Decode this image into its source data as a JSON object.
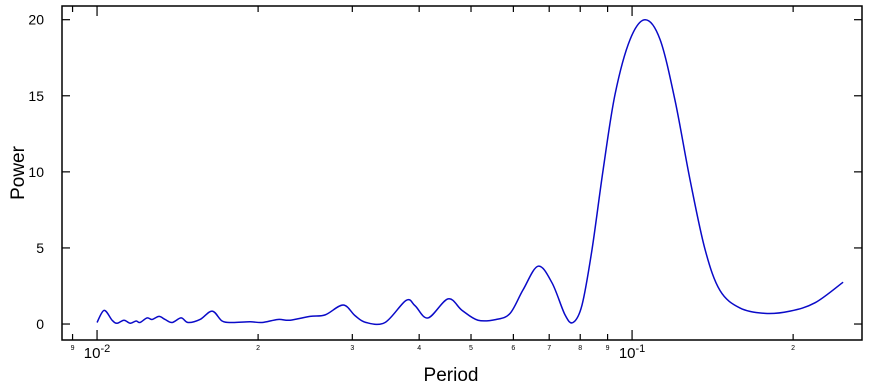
{
  "chart_data": {
    "type": "line",
    "x_label": "Period",
    "y_label": "Power",
    "xscale": "log",
    "xlim": [
      0.0086,
      0.269
    ],
    "ylim": [
      -1.05,
      20.9
    ],
    "xticks": [
      {
        "value": 0.009,
        "label": "9"
      },
      {
        "value": 0.01,
        "label": "10",
        "exponent": "-2"
      },
      {
        "value": 0.02,
        "label": "2"
      },
      {
        "value": 0.03,
        "label": "3"
      },
      {
        "value": 0.04,
        "label": "4"
      },
      {
        "value": 0.05,
        "label": "5"
      },
      {
        "value": 0.06,
        "label": "6"
      },
      {
        "value": 0.07,
        "label": "7"
      },
      {
        "value": 0.08,
        "label": "8"
      },
      {
        "value": 0.09,
        "label": "9"
      },
      {
        "value": 0.1,
        "label": "10",
        "exponent": "-1"
      },
      {
        "value": 0.2,
        "label": "2"
      }
    ],
    "yticks": [
      0,
      5,
      10,
      15,
      20
    ],
    "series": [
      {
        "color": "#0a0ac8",
        "x": [
          0.01,
          0.01031,
          0.01067,
          0.0109,
          0.01123,
          0.01153,
          0.01183,
          0.01203,
          0.0124,
          0.01267,
          0.01306,
          0.0134,
          0.01381,
          0.01436,
          0.01479,
          0.01558,
          0.01641,
          0.01713,
          0.01788,
          0.01932,
          0.02034,
          0.02179,
          0.02295,
          0.02501,
          0.02669,
          0.02884,
          0.03035,
          0.03182,
          0.03454,
          0.03781,
          0.0393,
          0.04156,
          0.0453,
          0.04811,
          0.05153,
          0.0557,
          0.05916,
          0.06256,
          0.06673,
          0.07087,
          0.07494,
          0.07756,
          0.08062,
          0.08417,
          0.08826,
          0.09294,
          0.09915,
          0.1058,
          0.1128,
          0.1203,
          0.1283,
          0.1369,
          0.146,
          0.1592,
          0.1773,
          0.1974,
          0.2199,
          0.248
        ],
        "values": [
          0.1,
          0.9,
          0.25,
          0.05,
          0.25,
          0.05,
          0.2,
          0.1,
          0.4,
          0.3,
          0.5,
          0.3,
          0.1,
          0.4,
          0.1,
          0.3,
          0.85,
          0.2,
          0.1,
          0.15,
          0.1,
          0.3,
          0.25,
          0.5,
          0.6,
          1.25,
          0.55,
          0.1,
          0.1,
          1.55,
          1.2,
          0.4,
          1.65,
          0.9,
          0.25,
          0.3,
          0.7,
          2.25,
          3.8,
          2.7,
          0.6,
          0.1,
          1.25,
          4.9,
          10.1,
          15.1,
          18.7,
          20.0,
          18.7,
          14.7,
          9.5,
          4.9,
          2.2,
          1.05,
          0.7,
          0.85,
          1.4,
          2.75
        ]
      }
    ]
  }
}
